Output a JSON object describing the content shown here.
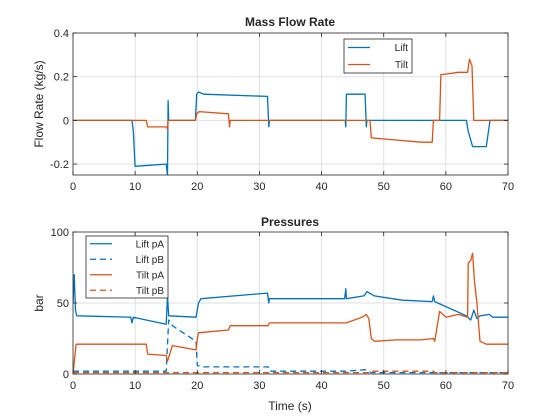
{
  "chart_data": [
    {
      "type": "line",
      "title": "Mass Flow Rate",
      "xlabel": "",
      "ylabel": "Flow Rate (kg/s)",
      "xlim": [
        0,
        70
      ],
      "ylim": [
        -0.25,
        0.4
      ],
      "xticks": [
        0,
        10,
        20,
        30,
        40,
        50,
        60,
        70
      ],
      "yticks": [
        -0.2,
        0,
        0.2,
        0.4
      ],
      "ytick_labels": [
        "-0.2",
        "0",
        "0.2",
        "0.4"
      ],
      "grid": true,
      "legend": "top-right-inset",
      "series": [
        {
          "name": "Lift",
          "color": "#0072BD",
          "dash": "solid",
          "points": [
            [
              0,
              0
            ],
            [
              9.5,
              0
            ],
            [
              9.7,
              -0.05
            ],
            [
              10,
              -0.21
            ],
            [
              15,
              -0.2
            ],
            [
              15.2,
              -0.25
            ],
            [
              15.3,
              0.09
            ],
            [
              15.4,
              0
            ],
            [
              19.7,
              0
            ],
            [
              19.9,
              0.12
            ],
            [
              20.2,
              0.13
            ],
            [
              21,
              0.12
            ],
            [
              31.3,
              0.11
            ],
            [
              31.5,
              -0.03
            ],
            [
              31.6,
              0
            ],
            [
              43.8,
              0
            ],
            [
              43.9,
              -0.03
            ],
            [
              44,
              0.12
            ],
            [
              47,
              0.12
            ],
            [
              47.2,
              -0.03
            ],
            [
              47.3,
              0
            ],
            [
              63.3,
              0
            ],
            [
              63.6,
              -0.05
            ],
            [
              64.3,
              -0.12
            ],
            [
              66.5,
              -0.12
            ],
            [
              67,
              -0.02
            ],
            [
              67.1,
              0
            ],
            [
              70,
              0
            ]
          ]
        },
        {
          "name": "Tilt",
          "color": "#D95319",
          "dash": "solid",
          "points": [
            [
              0,
              0
            ],
            [
              11.8,
              0
            ],
            [
              12,
              -0.03
            ],
            [
              15,
              -0.03
            ],
            [
              15.2,
              -0.04
            ],
            [
              15.3,
              0
            ],
            [
              19.7,
              0
            ],
            [
              19.9,
              0.03
            ],
            [
              20.3,
              0.04
            ],
            [
              25,
              0.03
            ],
            [
              25.2,
              -0.03
            ],
            [
              25.3,
              0
            ],
            [
              47.8,
              0
            ],
            [
              48,
              -0.08
            ],
            [
              52,
              -0.09
            ],
            [
              56,
              -0.1
            ],
            [
              57.8,
              -0.1
            ],
            [
              58,
              0
            ],
            [
              59,
              0
            ],
            [
              59.2,
              0.21
            ],
            [
              59.5,
              0.21
            ],
            [
              62,
              0.22
            ],
            [
              63.5,
              0.22
            ],
            [
              63.8,
              0.28
            ],
            [
              64.2,
              0.25
            ],
            [
              64.5,
              0
            ],
            [
              70,
              0
            ]
          ]
        }
      ]
    },
    {
      "type": "line",
      "title": "Pressures",
      "xlabel": "Time (s)",
      "ylabel": "bar",
      "xlim": [
        0,
        70
      ],
      "ylim": [
        0,
        100
      ],
      "xticks": [
        0,
        10,
        20,
        30,
        40,
        50,
        60,
        70
      ],
      "yticks": [
        0,
        50,
        100
      ],
      "ytick_labels": [
        "0",
        "50",
        "100"
      ],
      "grid": true,
      "legend": "top-left-inset",
      "series": [
        {
          "name": "Lift pA",
          "color": "#0072BD",
          "dash": "solid",
          "points": [
            [
              0,
              50
            ],
            [
              0.2,
              70
            ],
            [
              0.4,
              45
            ],
            [
              0.6,
              41
            ],
            [
              9.3,
              40
            ],
            [
              9.5,
              36
            ],
            [
              9.7,
              40
            ],
            [
              15,
              35
            ],
            [
              15.2,
              55
            ],
            [
              15.4,
              41
            ],
            [
              19.8,
              40
            ],
            [
              20,
              45
            ],
            [
              20.2,
              50
            ],
            [
              20.6,
              53
            ],
            [
              31.3,
              57
            ],
            [
              31.5,
              50
            ],
            [
              31.6,
              53
            ],
            [
              43.7,
              53
            ],
            [
              43.9,
              60
            ],
            [
              44,
              53
            ],
            [
              46.8,
              55
            ],
            [
              47,
              56
            ],
            [
              47.3,
              58
            ],
            [
              48.5,
              55
            ],
            [
              53,
              52
            ],
            [
              57.8,
              51
            ],
            [
              58,
              55
            ],
            [
              58.2,
              51
            ],
            [
              63.3,
              41
            ],
            [
              64,
              38
            ],
            [
              64.5,
              45
            ],
            [
              65,
              39
            ],
            [
              65.5,
              41
            ],
            [
              67,
              42
            ],
            [
              67.5,
              40
            ],
            [
              70,
              40
            ]
          ]
        },
        {
          "name": "Lift pB",
          "color": "#0072BD",
          "dash": "dashed",
          "points": [
            [
              0,
              2
            ],
            [
              15,
              2
            ],
            [
              15.4,
              38
            ],
            [
              16,
              34
            ],
            [
              19.8,
              23
            ],
            [
              20,
              6
            ],
            [
              21,
              5
            ],
            [
              31.4,
              5
            ],
            [
              31.6,
              2
            ],
            [
              44,
              2
            ],
            [
              47,
              3
            ],
            [
              48,
              1
            ],
            [
              70,
              1
            ]
          ]
        },
        {
          "name": "Tilt pA",
          "color": "#D95319",
          "dash": "solid",
          "points": [
            [
              0,
              0
            ],
            [
              0.5,
              21
            ],
            [
              11.8,
              21
            ],
            [
              12,
              14
            ],
            [
              15,
              13
            ],
            [
              15.2,
              9
            ],
            [
              15.5,
              13
            ],
            [
              16,
              20
            ],
            [
              19.8,
              17
            ],
            [
              20,
              25
            ],
            [
              20.2,
              29
            ],
            [
              25,
              31
            ],
            [
              25.3,
              34
            ],
            [
              31.4,
              34
            ],
            [
              31.6,
              36
            ],
            [
              44,
              36
            ],
            [
              46.5,
              40
            ],
            [
              47.2,
              42
            ],
            [
              47.6,
              39
            ],
            [
              48,
              25
            ],
            [
              48.5,
              23
            ],
            [
              52,
              24
            ],
            [
              56,
              24
            ],
            [
              58,
              25
            ],
            [
              58.2,
              23
            ],
            [
              59,
              44
            ],
            [
              60,
              40
            ],
            [
              62,
              42
            ],
            [
              63.5,
              40
            ],
            [
              63.6,
              78
            ],
            [
              64,
              80
            ],
            [
              64.3,
              85
            ],
            [
              64.6,
              66
            ],
            [
              65,
              50
            ],
            [
              65.5,
              23
            ],
            [
              66.5,
              21
            ],
            [
              70,
              21
            ]
          ]
        },
        {
          "name": "Tilt pB",
          "color": "#D95319",
          "dash": "dashed",
          "points": [
            [
              0,
              1
            ],
            [
              47.8,
              1
            ],
            [
              48,
              2
            ],
            [
              58,
              2
            ],
            [
              58.2,
              1
            ],
            [
              70,
              1
            ]
          ]
        }
      ]
    }
  ]
}
